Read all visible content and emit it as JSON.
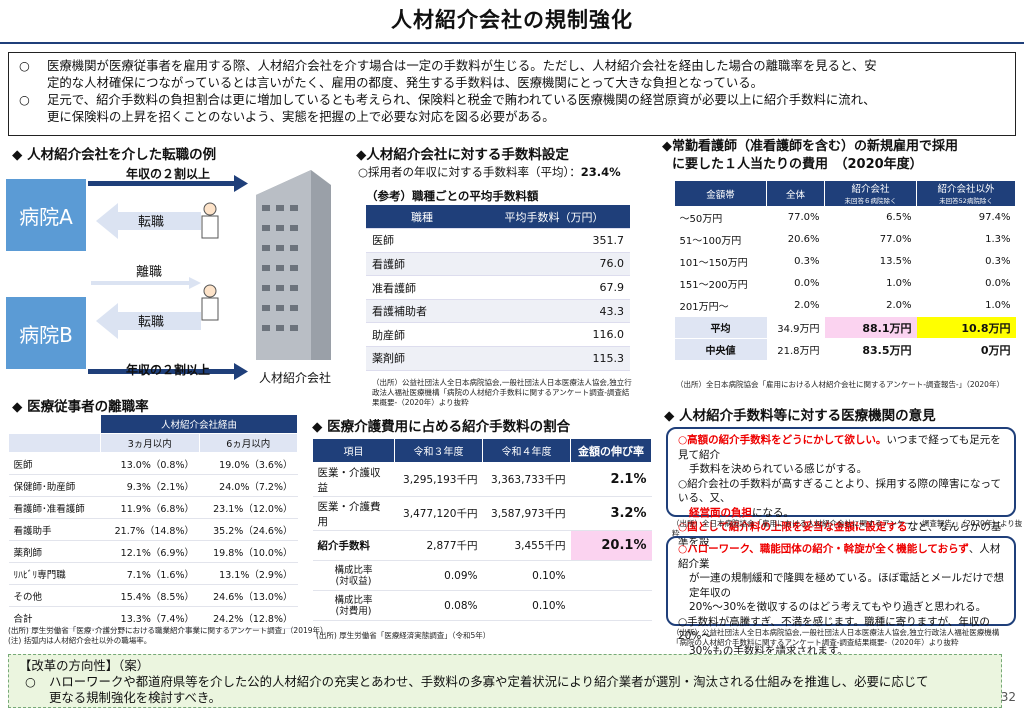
{
  "title": "人材紹介会社の規制強化",
  "intro": {
    "bullet": "○",
    "p1a": "医療機関が医療従事者を雇用する際、人材紹介会社を介す場合は一定の手数料が生じる。ただし、人材紹介会社を経由した場合の離職率を見ると、安",
    "p1b": "定的な人材確保につながっているとは言いがたく、雇用の都度、発生する手数料は、医療機関にとって大きな負担となっている。",
    "p2a": "足元で、紹介手数料の負担割合は更に増加しているとも考えられ、保険料と税金で賄われている医療機関の経営原資が必要以上に紹介手数料に流れ、",
    "p2b": "更に保険料の上昇を招くことのないよう、実態を把握の上で必要な対応を図る必要がある。"
  },
  "diagram": {
    "heading": "◆ 人材紹介会社を介した転職の例",
    "hospital_a": "病院A",
    "hospital_b": "病院B",
    "income_top": "年収の２割以上",
    "income_bottom": "年収の２割以上",
    "job_change_1": "転職",
    "resign": "離職",
    "job_change_2": "転職",
    "agency": "人材紹介会社"
  },
  "fee": {
    "heading": "◆人材紹介会社に対する手数料設定",
    "rate_label": "○採用者の年収に対する手数料率（平均）：",
    "rate_value": "23.4%",
    "sub": "（参考）職種ごとの平均手数料額",
    "col1": "職種",
    "col2": "平均手数料（万円）",
    "rows": [
      {
        "job": "医師",
        "fee": "351.7"
      },
      {
        "job": "看護師",
        "fee": "76.0"
      },
      {
        "job": "准看護師",
        "fee": "67.9"
      },
      {
        "job": "看護補助者",
        "fee": "43.3"
      },
      {
        "job": "助産師",
        "fee": "116.0"
      },
      {
        "job": "薬剤師",
        "fee": "115.3"
      }
    ],
    "source": "（出所）公益社団法人全日本病院協会,一般社団法人日本医療法人協会,独立行政法人福祉医療機構「病院の人材紹介手数料に関するアンケート調査-調査結果概要-（2020年）より抜粋"
  },
  "nurse": {
    "heading1": "◆常勤看護師（准看護師を含む）の新規雇用で採用",
    "heading2": "に要した１人当たりの費用　（2020年度）",
    "col0": "金額帯",
    "col1": "全体",
    "col2": "紹介会社",
    "col2sub": "未回答６病院除く",
    "col3": "紹介会社以外",
    "col3sub": "未回答52病院除く",
    "rows": [
      [
        "～50万円",
        "77.0%",
        "6.5%",
        "97.4%"
      ],
      [
        "51～100万円",
        "20.6%",
        "77.0%",
        "1.3%"
      ],
      [
        "101～150万円",
        "0.3%",
        "13.5%",
        "0.3%"
      ],
      [
        "151～200万円",
        "0.0%",
        "1.0%",
        "0.0%"
      ],
      [
        "201万円～",
        "2.0%",
        "2.0%",
        "1.0%"
      ]
    ],
    "avg_label": "平均",
    "avg": [
      "34.9万円",
      "88.1万円",
      "10.8万円"
    ],
    "med_label": "中央値",
    "med": [
      "21.8万円",
      "83.5万円",
      "0万円"
    ],
    "source": "（出所）全日本病院協会「雇用における人材紹介会社に関するアンケート-調査報告-」（2020年）"
  },
  "turnover": {
    "heading": "◆ 医療従事者の離職率",
    "group": "人材紹介会社経由",
    "col1": "3ヵ月以内",
    "col2": "6ヵ月以内",
    "rows": [
      [
        "医師",
        "13.0%（0.8%）",
        "19.0%（3.6%）"
      ],
      [
        "保健師･助産師",
        "9.3%（2.1%）",
        "24.0%（7.2%）"
      ],
      [
        "看護師･准看護師",
        "11.9%（6.8%）",
        "23.1%（12.0%）"
      ],
      [
        "看護助手",
        "21.7%（14.8%）",
        "35.2%（24.6%）"
      ],
      [
        "薬剤師",
        "12.1%（6.9%）",
        "19.8%（10.0%）"
      ],
      [
        "ﾘﾊﾋﾞﾘ専門職",
        "7.1%（1.6%）",
        "13.1%（2.9%）"
      ],
      [
        "その他",
        "15.4%（8.5%）",
        "24.6%（13.0%）"
      ],
      [
        "合計",
        "13.3%（7.4%）",
        "24.2%（12.8%）"
      ]
    ],
    "source1": "(出所) 厚生労働省「医療･介護分野における職業紹介事業に関するアンケート調査」（2019年）",
    "source2": "(注) 括弧内は人材紹介会社以外の職場率。"
  },
  "cost": {
    "heading": "◆ 医療介護費用に占める紹介手数料の割合",
    "col0": "項目",
    "col1": "令和３年度",
    "col2": "令和４年度",
    "col3": "金額の伸び率",
    "rows": [
      [
        "医業・介護収益",
        "3,295,193千円",
        "3,363,733千円",
        "2.1%"
      ],
      [
        "医業・介護費用",
        "3,477,120千円",
        "3,587,973千円",
        "3.2%"
      ],
      [
        "紹介手数料",
        "2,877千円",
        "3,455千円",
        "20.1%"
      ]
    ],
    "ratio1_label": "構成比率\n(対収益)",
    "ratio1": [
      "0.09%",
      "0.10%"
    ],
    "ratio2_label": "構成比率\n(対費用)",
    "ratio2": [
      "0.08%",
      "0.10%"
    ],
    "source": "(出所) 厚生労働省「医療経済実態調査」（令和5年）"
  },
  "opinion": {
    "heading": "◆ 人材紹介手数料等に対する医療機関の意見",
    "box1": {
      "l1_red": "○高額の紹介手数料をどうにかして欲しい。",
      "l1_rest": "いつまで経っても足元を見て紹介",
      "l2": "手数料を決められている感じがする。",
      "l3": "○紹介会社の手数料が高すぎることより、採用する際の障害になっている、又、",
      "l4_red": "経営面の負担",
      "l4_rest": "になる。",
      "l5_red": "○国として紹介料の上限を妥当な金額に設定する",
      "l5_rest": "など、なんらかの基準を設",
      "l6": "けて欲しい。"
    },
    "source1": "（出所）全日本病院協会「雇用における人材紹介会社に関するアンケート-調査報告-」（2020年）より抜粋",
    "box2": {
      "l1_red": "○ハローワーク、職能団体の紹介・斡旋が全く機能しておらず",
      "l1_rest": "、人材紹介業",
      "l2": "が一連の規制緩和で隆興を極めている。ほぼ電話とメールだけで想定年収の",
      "l3": "20%～30%を徴収するのはどう考えてもやり過ぎと思われる。",
      "l4": "○手数料が高騰すぎ、不満を感じます。職種に寄りますが、年収の20%～",
      "l5": "30%もの手数料を請求されます。"
    },
    "source2a": "（出所）公益社団法人全日本病院協会,一般社団法人日本医療法人協会,独立行政法人福祉医療機構",
    "source2b": "「病院の人材紹介手数料に関するアンケート調査-調査結果概要-（2020年）より抜粋"
  },
  "reform": {
    "heading": "【改革の方向性】（案）",
    "bullet": "○",
    "l1": "ハローワークや都道府県等を介した公的人材紹介の充実とあわせ、手数料の多寡や定着状況により紹介業者が選別・淘汰される仕組みを推進し、必要に応じて",
    "l2": "更なる規制強化を検討すべき。"
  },
  "page": "32",
  "colors": {
    "navy": "#1f3f7a",
    "blue": "#5b9bd5",
    "pink": "#fbd3f0",
    "yellow": "#ffff00",
    "reform_bg": "#ebf5df"
  }
}
